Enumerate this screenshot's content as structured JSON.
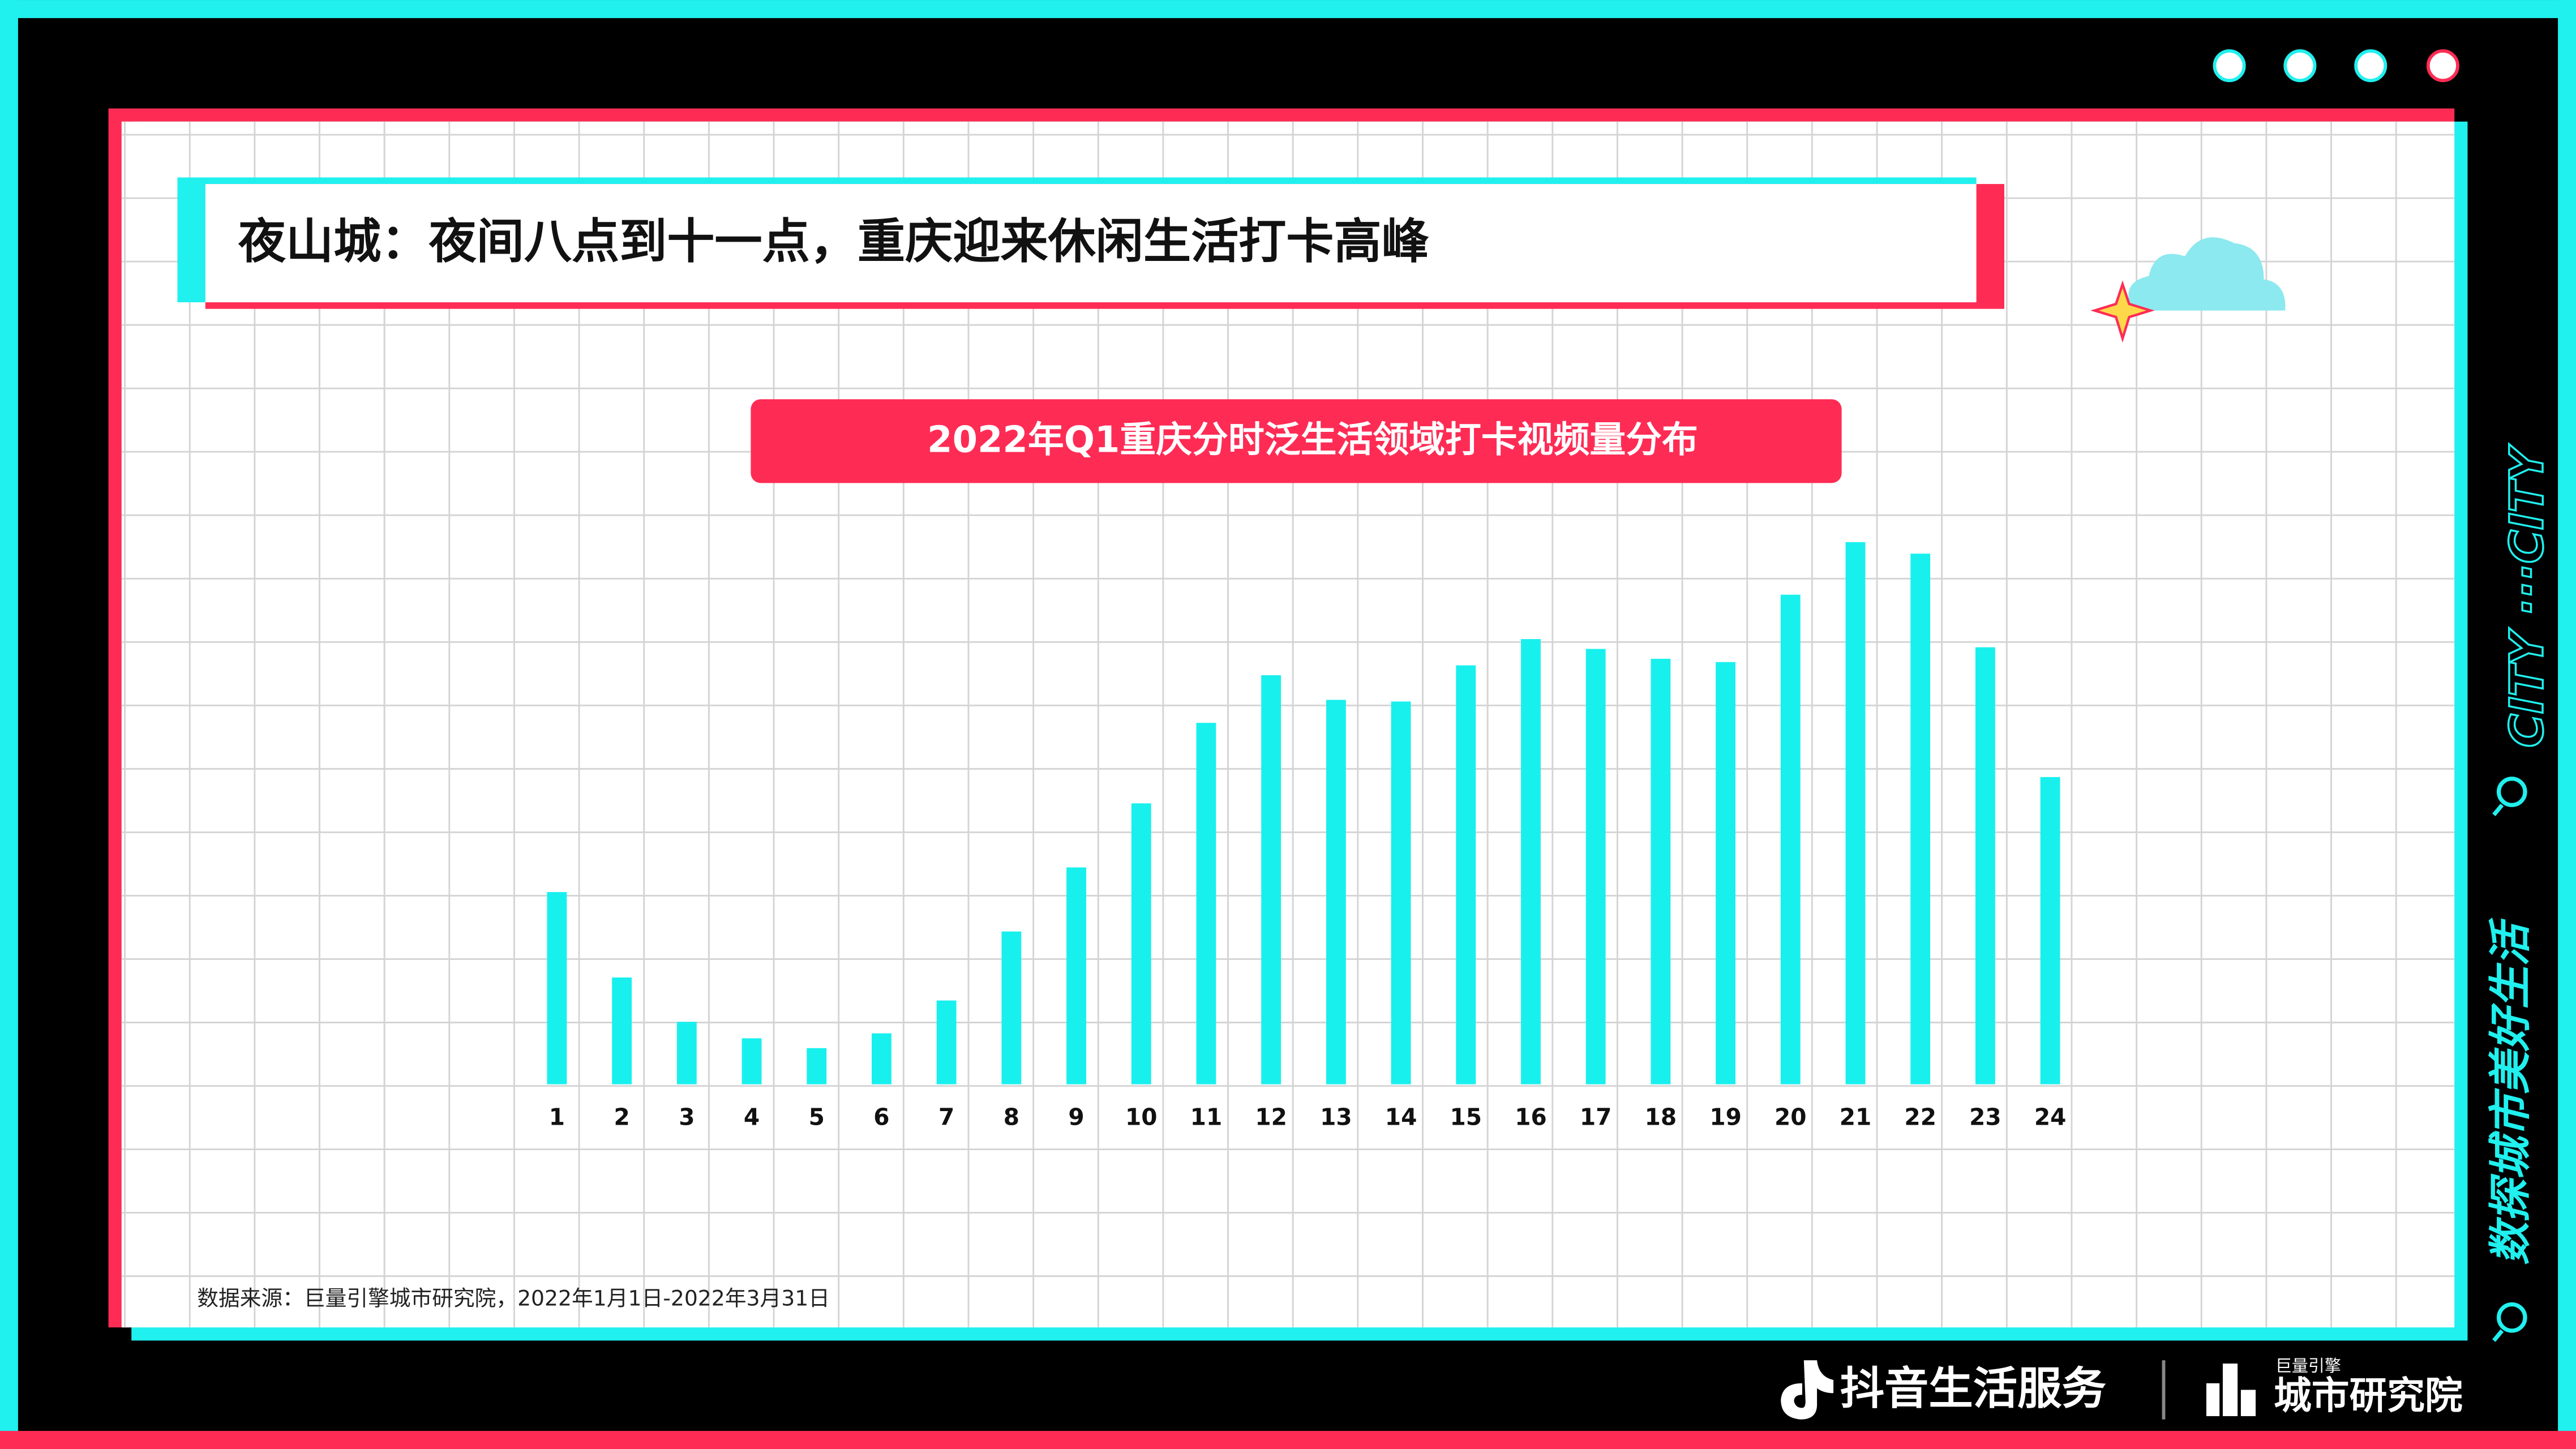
{
  "title": "夜山城：夜间八点到十一点，重庆迎来休闲生活打卡高峰",
  "side_text": "数探城市美好生活",
  "side_tag": "CITY ···CITY",
  "chart_data": {
    "type": "bar",
    "title": "2022年Q1重庆分时泛生活领域打卡视频量分布",
    "categories": [
      "1",
      "2",
      "3",
      "4",
      "5",
      "6",
      "7",
      "8",
      "9",
      "10",
      "11",
      "12",
      "13",
      "14",
      "15",
      "16",
      "17",
      "18",
      "19",
      "20",
      "21",
      "22",
      "23",
      "24"
    ],
    "values": [
      117,
      65,
      38,
      28,
      22,
      31,
      51,
      93,
      132,
      171,
      220,
      249,
      234,
      233,
      255,
      271,
      265,
      259,
      257,
      298,
      330,
      323,
      266,
      187
    ],
    "color": "#18f0ee"
  },
  "source": "数据来源：巨量引擎城市研究院，2022年1月1日-2022年3月31日",
  "footer": {
    "brand": "抖音生活服务",
    "partner_small": "巨量引擎",
    "partner": "城市研究院"
  }
}
